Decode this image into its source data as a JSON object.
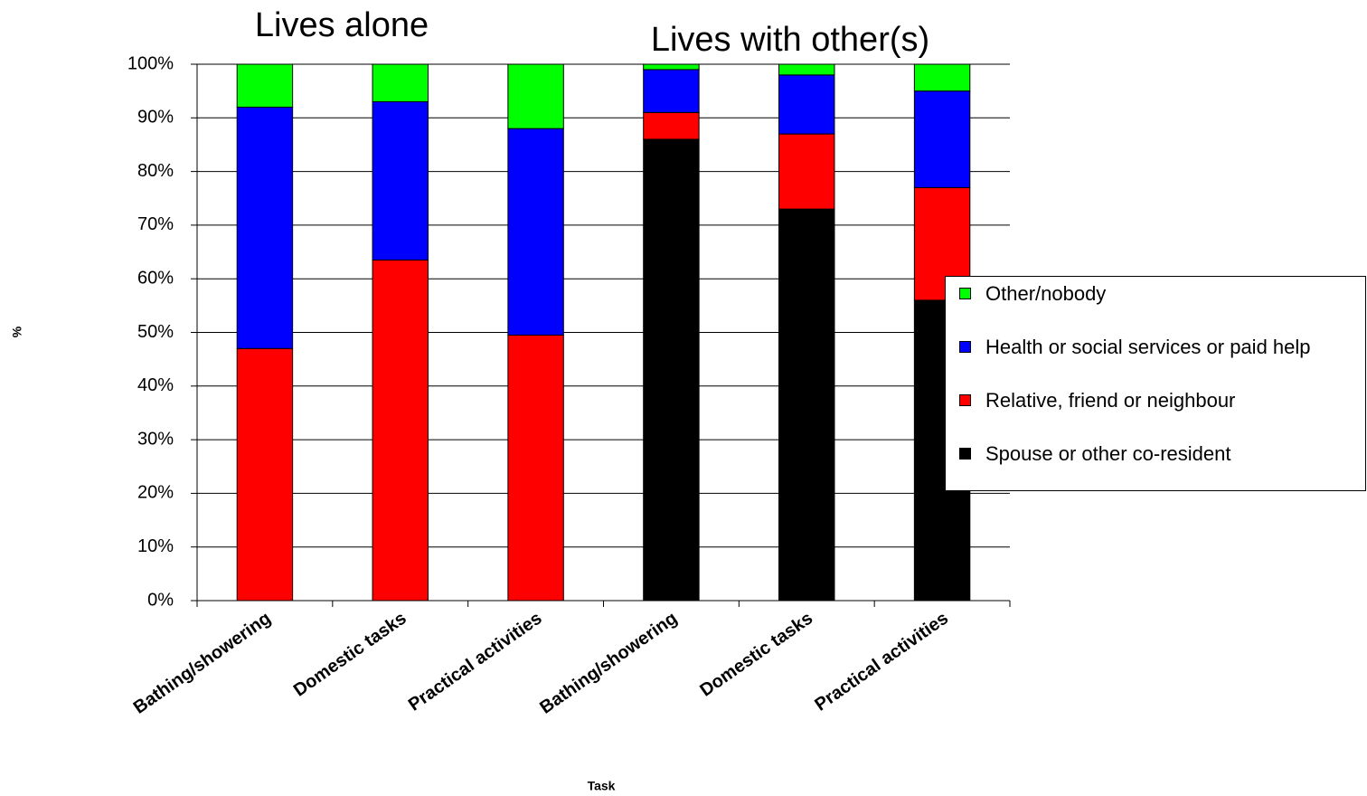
{
  "chart_data": {
    "type": "bar",
    "stacked": true,
    "annotations": [
      "Lives alone",
      "Lives with other(s)"
    ],
    "x_label": "Task",
    "y_label": "%",
    "categories": [
      "Bathing/showering",
      "Domestic tasks",
      "Practical activities",
      "Bathing/showering",
      "Domestic tasks",
      "Practical activities"
    ],
    "series": [
      {
        "name": "Spouse or other co-resident",
        "color": "#000000",
        "values": [
          0,
          0,
          0,
          86,
          73,
          56
        ]
      },
      {
        "name": "Relative, friend or neighbour",
        "color": "#ff0000",
        "values": [
          47,
          63.5,
          49.5,
          5,
          14,
          21
        ]
      },
      {
        "name": "Health or social services or paid help",
        "color": "#0000ff",
        "values": [
          45,
          29.5,
          38.5,
          8,
          11,
          18
        ]
      },
      {
        "name": "Other/nobody",
        "color": "#00ff00",
        "values": [
          8,
          7,
          12,
          1,
          2,
          5
        ]
      }
    ],
    "ylim": [
      0,
      100
    ],
    "yticks": [
      {
        "value": 0,
        "label": "0%"
      },
      {
        "value": 10,
        "label": "10%"
      },
      {
        "value": 20,
        "label": "20%"
      },
      {
        "value": 30,
        "label": "30%"
      },
      {
        "value": 40,
        "label": "40%"
      },
      {
        "value": 50,
        "label": "50%"
      },
      {
        "value": 60,
        "label": "60%"
      },
      {
        "value": 70,
        "label": "70%"
      },
      {
        "value": 80,
        "label": "80%"
      },
      {
        "value": 90,
        "label": "90%"
      },
      {
        "value": 100,
        "label": "100%"
      }
    ],
    "grid": true,
    "legend": "right"
  }
}
